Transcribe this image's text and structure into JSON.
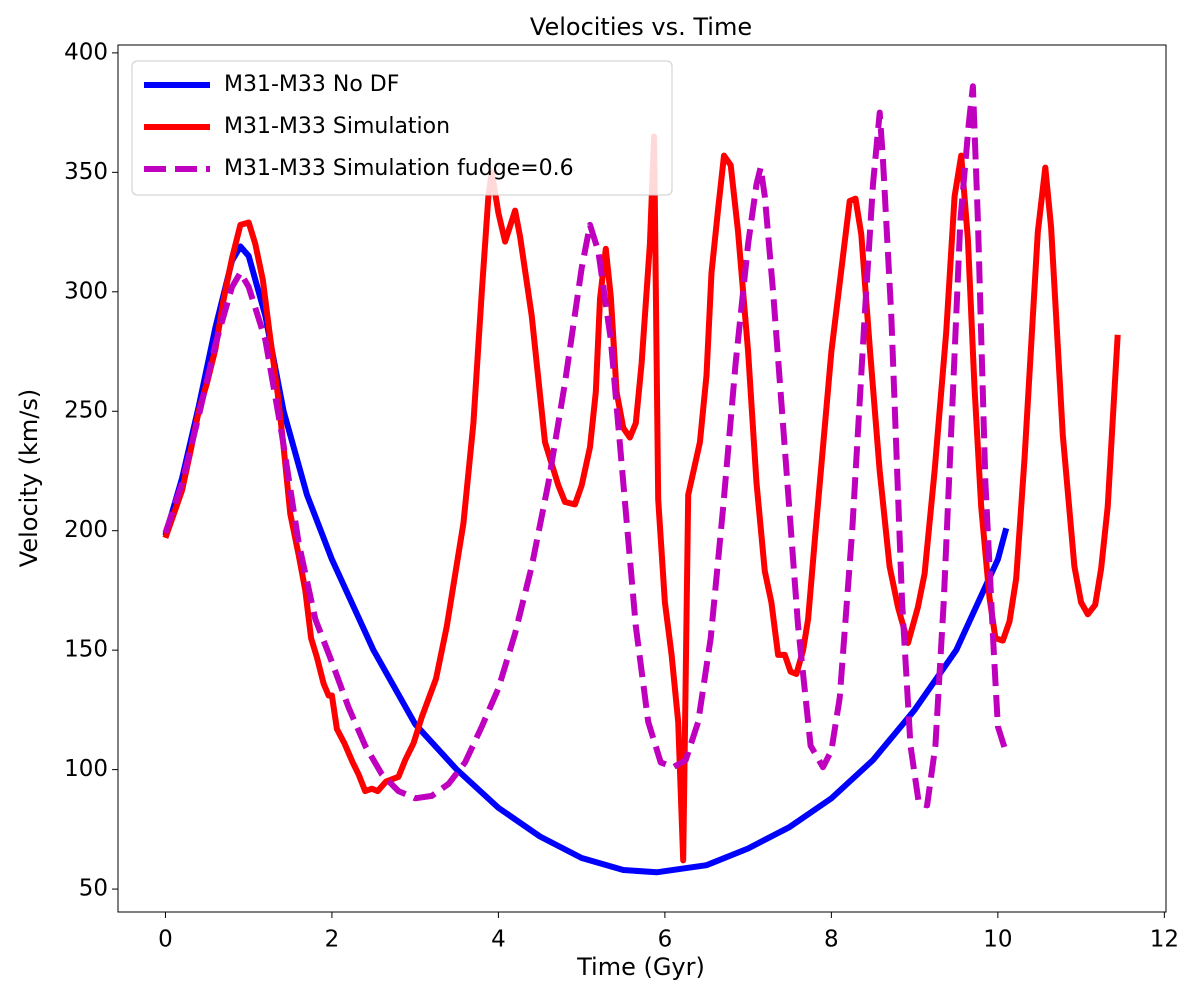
{
  "chart_data": {
    "type": "line",
    "title": "Velocities vs. Time",
    "x_label": "Time (Gyr)",
    "y_label": "Velocity (km/s)",
    "xlim": [
      -0.57,
      12.02
    ],
    "ylim": [
      40.4,
      403.3
    ],
    "xticks": [
      0,
      2,
      4,
      6,
      8,
      10,
      12
    ],
    "yticks": [
      50,
      100,
      150,
      200,
      250,
      300,
      350,
      400
    ],
    "grid": false,
    "legend": "upper-left",
    "series": [
      {
        "name": "M31-M33 No DF",
        "color": "#0000ff",
        "dash": "solid",
        "x": [
          0,
          0.2,
          0.4,
          0.6,
          0.8,
          0.9,
          1.0,
          1.2,
          1.42,
          1.7,
          2.0,
          2.5,
          3.0,
          3.5,
          4.0,
          4.5,
          5.0,
          5.5,
          5.9,
          6.5,
          7.0,
          7.5,
          8.0,
          8.5,
          9.0,
          9.5,
          10.0,
          10.1
        ],
        "values": [
          198,
          222,
          252,
          285,
          313,
          319,
          315,
          290,
          250,
          215,
          188,
          150,
          119,
          100,
          84,
          72,
          63,
          58,
          57,
          60,
          67,
          76,
          88,
          104,
          125,
          150,
          188,
          201
        ]
      },
      {
        "name": "M31-M33 Simulation",
        "color": "#ff0000",
        "dash": "solid",
        "x": [
          0,
          0.1,
          0.2,
          0.3,
          0.4,
          0.5,
          0.6,
          0.7,
          0.8,
          0.9,
          1.0,
          1.08,
          1.17,
          1.25,
          1.35,
          1.42,
          1.5,
          1.6,
          1.68,
          1.75,
          1.82,
          1.9,
          1.96,
          2.0,
          2.06,
          2.15,
          2.25,
          2.32,
          2.4,
          2.48,
          2.55,
          2.65,
          2.8,
          2.88,
          2.98,
          3.08,
          3.25,
          3.38,
          3.45,
          3.58,
          3.7,
          3.8,
          3.88,
          3.92,
          4.0,
          4.08,
          4.2,
          4.26,
          4.4,
          4.56,
          4.72,
          4.8,
          4.92,
          5.0,
          5.1,
          5.17,
          5.22,
          5.29,
          5.35,
          5.42,
          5.5,
          5.58,
          5.65,
          5.72,
          5.82,
          5.87,
          5.92,
          6.0,
          6.08,
          6.16,
          6.22,
          6.28,
          6.42,
          6.5,
          6.56,
          6.64,
          6.71,
          6.79,
          6.88,
          7.0,
          7.1,
          7.2,
          7.28,
          7.36,
          7.44,
          7.51,
          7.58,
          7.66,
          7.72,
          7.81,
          8.0,
          8.14,
          8.22,
          8.29,
          8.36,
          8.46,
          8.58,
          8.7,
          8.8,
          8.92,
          9.04,
          9.12,
          9.24,
          9.38,
          9.48,
          9.56,
          9.64,
          9.72,
          9.8,
          9.9,
          9.97,
          10.06,
          10.14,
          10.22,
          10.32,
          10.48,
          10.57,
          10.64,
          10.78,
          10.92,
          11.0,
          11.08,
          11.17,
          11.24,
          11.32,
          11.44
        ],
        "values": [
          197,
          207,
          217,
          233,
          250,
          262,
          276,
          297,
          314,
          328,
          329,
          320,
          305,
          283,
          257,
          235,
          207,
          190,
          175,
          155,
          147,
          136,
          131,
          131,
          117,
          111,
          103,
          98,
          91,
          92,
          91,
          95,
          97,
          104,
          111,
          122,
          138,
          160,
          175,
          203,
          245,
          300,
          340,
          350,
          333,
          321,
          334,
          323,
          290,
          237,
          219,
          212,
          211,
          219,
          235,
          258,
          297,
          318,
          298,
          258,
          243,
          239,
          245,
          270,
          320,
          365,
          213,
          170,
          148,
          120,
          62,
          215,
          237,
          265,
          308,
          335,
          357,
          353,
          325,
          275,
          220,
          183,
          170,
          148,
          148,
          141,
          140,
          150,
          163,
          200,
          275,
          315,
          338,
          339,
          324,
          277,
          225,
          185,
          168,
          153,
          168,
          182,
          225,
          283,
          340,
          357,
          322,
          260,
          210,
          172,
          155,
          154,
          162,
          180,
          230,
          325,
          352,
          327,
          240,
          185,
          170,
          165,
          169,
          184,
          210,
          282
        ]
      },
      {
        "name": "M31-M33 Simulation fudge=0.6",
        "color": "#bf00bf",
        "dash": "dashed",
        "x": [
          0,
          0.2,
          0.4,
          0.6,
          0.8,
          0.9,
          1.0,
          1.2,
          1.4,
          1.6,
          1.8,
          2.0,
          2.2,
          2.4,
          2.6,
          2.8,
          3.0,
          3.2,
          3.4,
          3.6,
          3.8,
          4.0,
          4.2,
          4.4,
          4.6,
          4.8,
          5.0,
          5.1,
          5.2,
          5.35,
          5.5,
          5.65,
          5.8,
          5.95,
          6.1,
          6.25,
          6.4,
          6.55,
          6.7,
          6.85,
          7.0,
          7.1,
          7.15,
          7.2,
          7.3,
          7.45,
          7.6,
          7.75,
          7.9,
          8.0,
          8.1,
          8.25,
          8.4,
          8.5,
          8.58,
          8.62,
          8.72,
          8.85,
          8.95,
          9.05,
          9.15,
          9.25,
          9.35,
          9.45,
          9.55,
          9.65,
          9.7,
          9.76,
          9.85,
          9.95,
          10.0,
          10.1
        ],
        "values": [
          199,
          220,
          248,
          278,
          302,
          308,
          302,
          280,
          240,
          195,
          163,
          145,
          126,
          110,
          98,
          91,
          88,
          89,
          94,
          103,
          118,
          134,
          157,
          185,
          220,
          262,
          310,
          328,
          317,
          280,
          220,
          160,
          120,
          103,
          101,
          104,
          120,
          155,
          210,
          270,
          320,
          345,
          352,
          340,
          300,
          230,
          160,
          110,
          101,
          108,
          130,
          200,
          290,
          345,
          375,
          355,
          290,
          170,
          110,
          86,
          85,
          110,
          170,
          250,
          330,
          370,
          386,
          330,
          220,
          150,
          118,
          107
        ]
      }
    ]
  }
}
